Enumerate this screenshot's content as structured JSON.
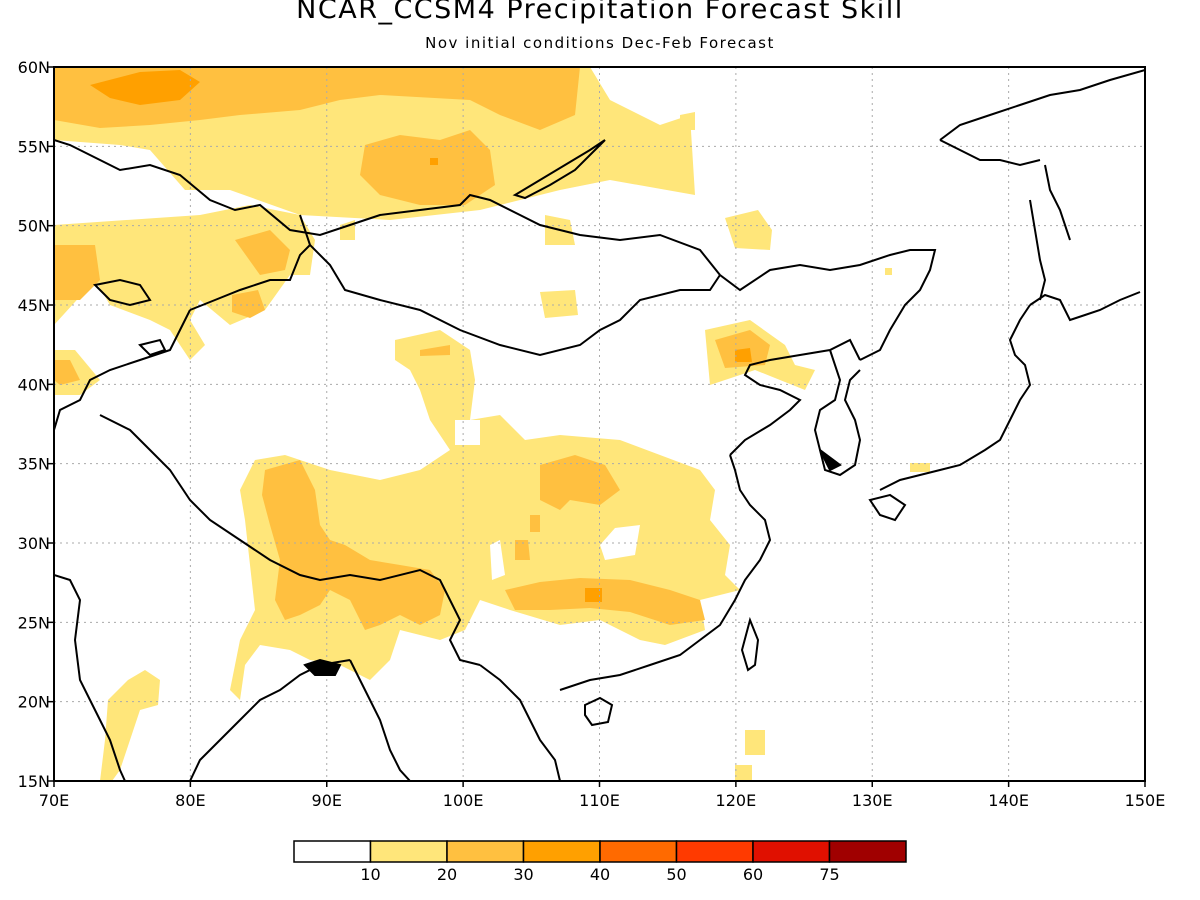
{
  "title": "NCAR_CCSM4 Precipitation Forecast Skill",
  "subtitle": "Nov initial conditions  Dec-Feb Forecast",
  "map": {
    "lon_range": [
      70,
      150
    ],
    "lat_range": [
      15,
      60
    ],
    "x_ticks": [
      "70E",
      "80E",
      "90E",
      "100E",
      "110E",
      "120E",
      "130E",
      "140E",
      "150E"
    ],
    "y_ticks": [
      "15N",
      "20N",
      "25N",
      "30N",
      "35N",
      "40N",
      "45N",
      "50N",
      "55N",
      "60N"
    ],
    "grid": "dotted"
  },
  "legend": {
    "labels": [
      "10",
      "20",
      "30",
      "40",
      "50",
      "60",
      "75"
    ],
    "colors": [
      "#ffffff",
      "#ffe67a",
      "#ffc040",
      "#ffa000",
      "#ff6a00",
      "#ff3a00",
      "#e01000",
      "#a00000"
    ]
  },
  "colors": {
    "coast": "#000000",
    "grid": "#aaaaaa"
  }
}
